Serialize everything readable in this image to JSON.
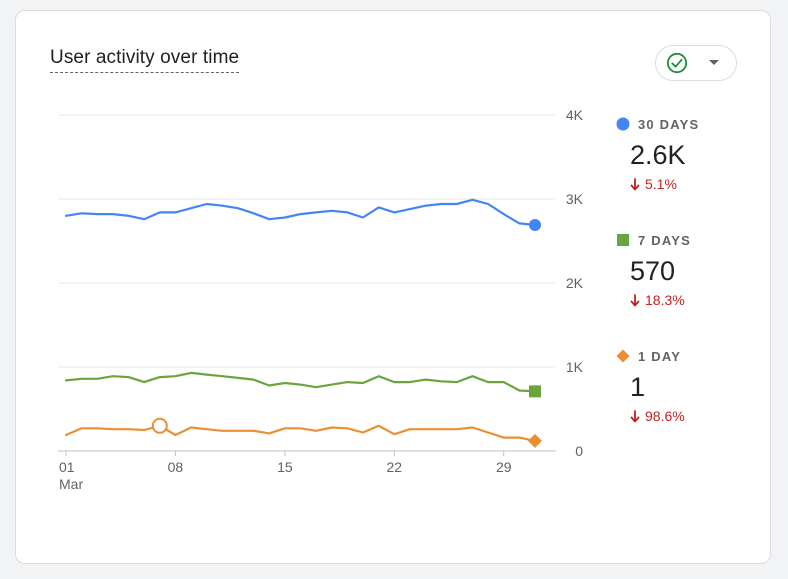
{
  "card": {
    "title": "User activity over time"
  },
  "compare_button": {
    "icon": "check-circle-icon",
    "caret_icon": "caret-down-icon",
    "accent": "#1e8e3e"
  },
  "legend": [
    {
      "label": "30 DAYS",
      "value": "2.6K",
      "change": "5.1%",
      "marker": "circle",
      "color": "#4285f4"
    },
    {
      "label": "7 DAYS",
      "value": "570",
      "change": "18.3%",
      "marker": "square",
      "color": "#6ca43c"
    },
    {
      "label": "1 DAY",
      "value": "1",
      "change": "98.6%",
      "marker": "diamond",
      "color": "#ea8f33"
    }
  ],
  "chart_data": {
    "type": "line",
    "title": "User activity over time",
    "x": [
      1,
      2,
      3,
      4,
      5,
      6,
      7,
      8,
      9,
      10,
      11,
      12,
      13,
      14,
      15,
      16,
      17,
      18,
      19,
      20,
      21,
      22,
      23,
      24,
      25,
      26,
      27,
      28,
      29,
      30,
      31
    ],
    "x_ticks": [
      {
        "x": 1,
        "label": "01",
        "sub": "Mar"
      },
      {
        "x": 8,
        "label": "08",
        "sub": ""
      },
      {
        "x": 15,
        "label": "15",
        "sub": ""
      },
      {
        "x": 22,
        "label": "22",
        "sub": ""
      },
      {
        "x": 29,
        "label": "29",
        "sub": ""
      }
    ],
    "y_ticks": [
      {
        "value": 0,
        "label": "0"
      },
      {
        "value": 1000,
        "label": "1K"
      },
      {
        "value": 2000,
        "label": "2K"
      },
      {
        "value": 3000,
        "label": "3K"
      },
      {
        "value": 4000,
        "label": "4K"
      }
    ],
    "ylim": [
      0,
      4000
    ],
    "xlim": [
      1,
      31
    ],
    "series": [
      {
        "name": "30 DAYS",
        "color": "#4285f4",
        "end_marker": "circle",
        "values": [
          2800,
          2830,
          2820,
          2820,
          2800,
          2760,
          2840,
          2840,
          2890,
          2940,
          2920,
          2890,
          2830,
          2760,
          2780,
          2820,
          2840,
          2860,
          2840,
          2780,
          2900,
          2840,
          2880,
          2920,
          2940,
          2940,
          2990,
          2940,
          2820,
          2710,
          2690
        ]
      },
      {
        "name": "7 DAYS",
        "color": "#6ca43c",
        "end_marker": "square",
        "values": [
          840,
          860,
          860,
          890,
          880,
          820,
          880,
          890,
          930,
          910,
          890,
          870,
          850,
          780,
          810,
          790,
          760,
          790,
          820,
          810,
          890,
          820,
          820,
          850,
          830,
          820,
          890,
          820,
          820,
          720,
          710
        ]
      },
      {
        "name": "1 DAY",
        "color": "#ea8f33",
        "end_marker": "diamond",
        "highlight_index": 6,
        "values": [
          190,
          270,
          270,
          260,
          260,
          250,
          300,
          190,
          280,
          260,
          240,
          240,
          240,
          210,
          270,
          270,
          240,
          280,
          270,
          220,
          300,
          200,
          260,
          260,
          260,
          260,
          280,
          220,
          160,
          160,
          120
        ]
      }
    ]
  }
}
